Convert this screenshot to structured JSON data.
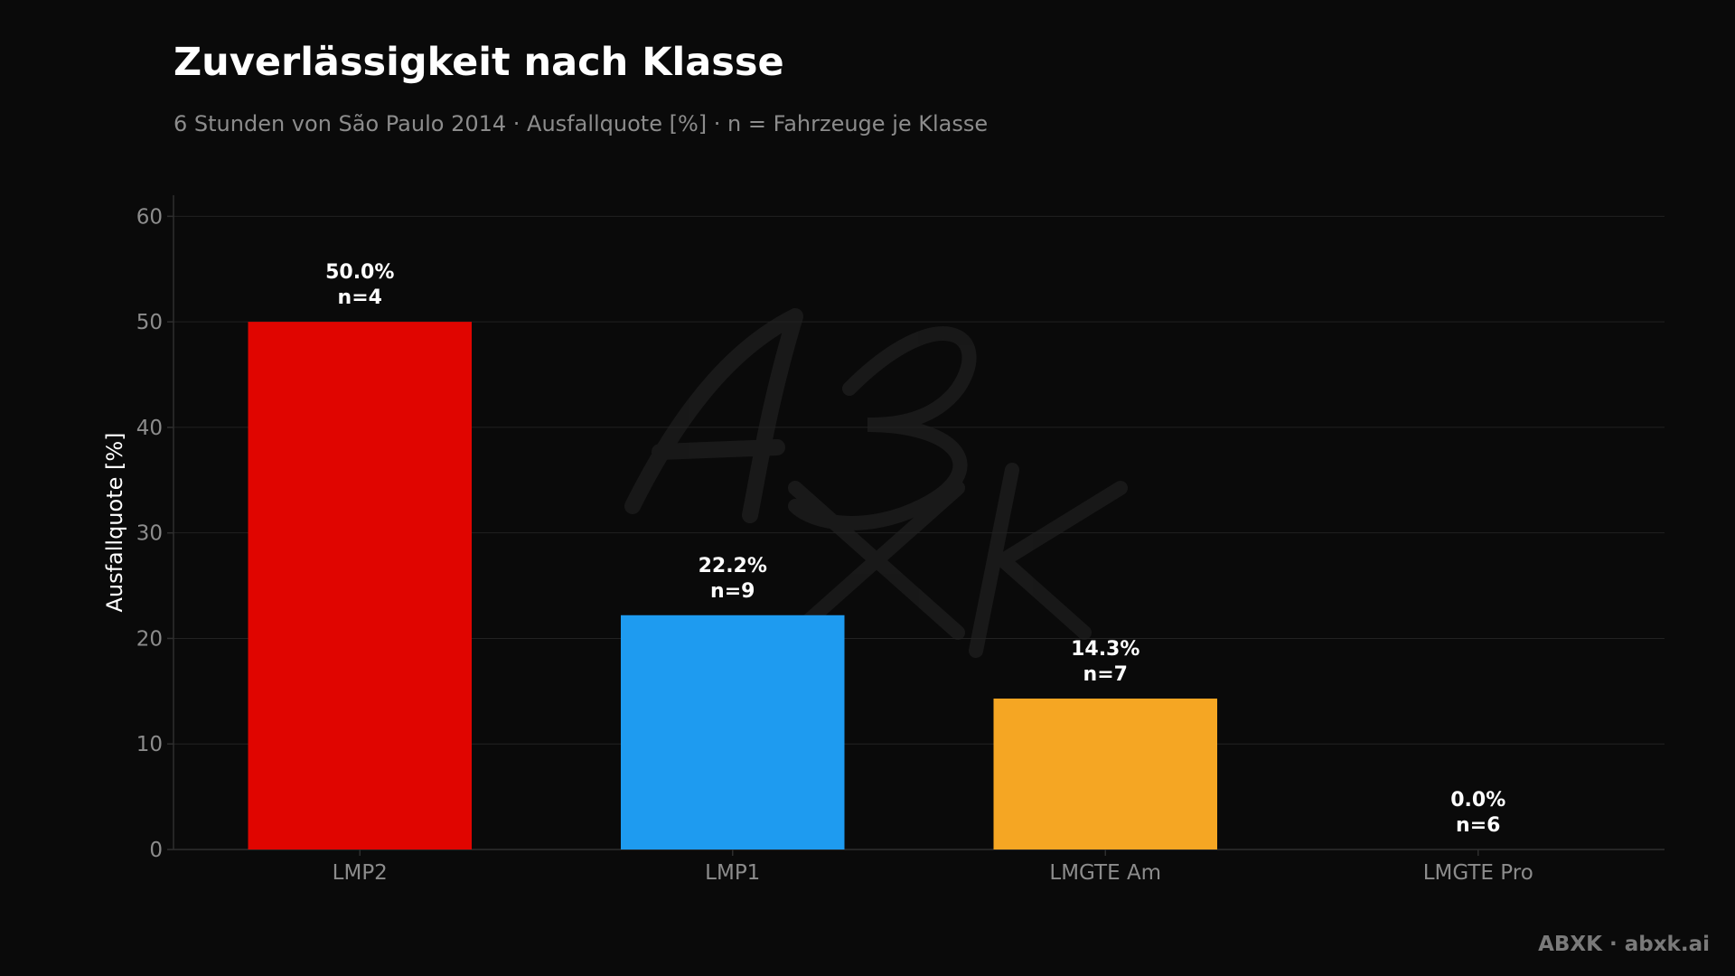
{
  "chart_data": {
    "type": "bar",
    "title": "Zuverlässigkeit nach Klasse",
    "subtitle": "6 Stunden von São Paulo 2014 · Ausfallquote [%] · n = Fahrzeuge je Klasse",
    "xlabel": "",
    "ylabel": "Ausfallquote [%]",
    "ylim": [
      0,
      62
    ],
    "yticks": [
      0,
      10,
      20,
      30,
      40,
      50,
      60
    ],
    "grid": true,
    "categories": [
      "LMP2",
      "LMP1",
      "LMGTE Am",
      "LMGTE Pro"
    ],
    "values": [
      50.0,
      22.2,
      14.3,
      0.0
    ],
    "counts": [
      4,
      9,
      7,
      6
    ],
    "value_labels": [
      "50.0%",
      "22.2%",
      "14.3%",
      "0.0%"
    ],
    "count_labels": [
      "n=4",
      "n=9",
      "n=7",
      "n=6"
    ],
    "colors": [
      "#e00500",
      "#1e9bf0",
      "#f5a623",
      "#e00500"
    ]
  },
  "watermark": "ABXK",
  "footer": {
    "brand": "ABXK · abxk.ai"
  },
  "theme": {
    "background": "#0a0a0a",
    "grid": "#222222",
    "axis": "#2e2e2e",
    "tick_text": "#8c8c8c",
    "label_text": "#ffffff"
  }
}
